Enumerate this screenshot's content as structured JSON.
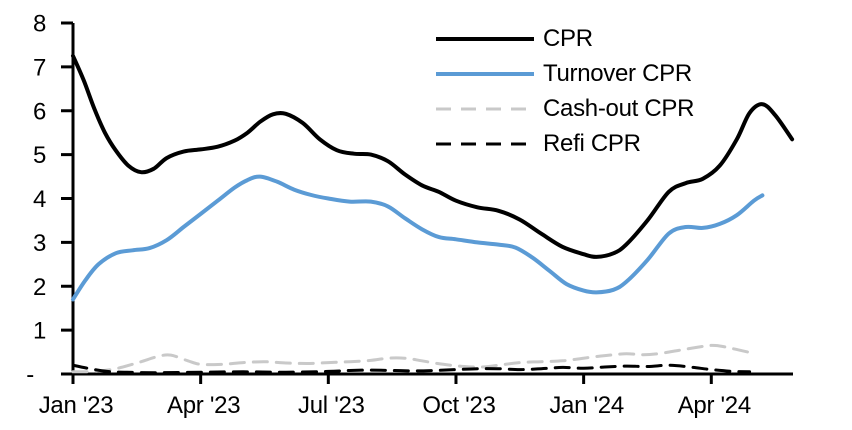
{
  "chart_data": {
    "type": "line",
    "title": "",
    "xlabel": "",
    "ylabel": "",
    "grid": false,
    "legend_position": "top-right-inside",
    "background_color": "#ffffff",
    "axis_color": "#000000",
    "x_axis": {
      "unit": "months since Jan 2023",
      "range": [
        0,
        16.92
      ],
      "tick_positions": [
        0,
        3,
        6,
        9,
        12,
        15
      ],
      "tick_labels": [
        "Jan '23",
        "Apr '23",
        "Jul '23",
        "Oct '23",
        "Jan '24",
        "Apr '24"
      ]
    },
    "y_axis": {
      "range": [
        0,
        8
      ],
      "tick_values": [
        0,
        1,
        2,
        3,
        4,
        5,
        6,
        7,
        8
      ],
      "tick_labels": [
        "-",
        "1",
        "2",
        "3",
        "4",
        "5",
        "6",
        "7",
        "8"
      ]
    },
    "series": [
      {
        "name": "CPR",
        "color": "#000000",
        "style": "solid",
        "width": 4,
        "x": [
          0,
          0.25,
          0.5,
          0.75,
          1,
          1.3,
          1.6,
          1.9,
          2.2,
          2.6,
          3,
          3.4,
          3.8,
          4.1,
          4.4,
          4.7,
          5,
          5.4,
          5.8,
          6.2,
          6.6,
          7,
          7.4,
          7.8,
          8.2,
          8.6,
          9,
          9.5,
          10,
          10.5,
          11,
          11.5,
          12,
          12.3,
          12.7,
          13,
          13.5,
          14,
          14.4,
          14.8,
          15.2,
          15.6,
          15.9,
          16.2,
          16.5,
          16.9
        ],
        "y": [
          7.25,
          6.7,
          6.05,
          5.5,
          5.1,
          4.75,
          4.6,
          4.68,
          4.92,
          5.07,
          5.12,
          5.18,
          5.32,
          5.5,
          5.75,
          5.92,
          5.93,
          5.72,
          5.35,
          5.1,
          5.02,
          5.0,
          4.85,
          4.55,
          4.3,
          4.15,
          3.95,
          3.8,
          3.72,
          3.52,
          3.2,
          2.9,
          2.73,
          2.67,
          2.75,
          2.95,
          3.5,
          4.15,
          4.35,
          4.45,
          4.75,
          5.35,
          5.95,
          6.15,
          5.9,
          5.35
        ]
      },
      {
        "name": "Turnover CPR",
        "color": "#5B9BD5",
        "style": "solid",
        "width": 4,
        "x": [
          0,
          0.3,
          0.6,
          1,
          1.4,
          1.8,
          2.2,
          2.6,
          3,
          3.4,
          3.8,
          4.1,
          4.4,
          4.8,
          5.2,
          5.6,
          6,
          6.5,
          7,
          7.4,
          7.8,
          8.2,
          8.6,
          9,
          9.5,
          10,
          10.4,
          10.8,
          11.2,
          11.6,
          12,
          12.3,
          12.7,
          13,
          13.5,
          14,
          14.4,
          14.8,
          15.2,
          15.6,
          16,
          16.2
        ],
        "y": [
          1.7,
          2.15,
          2.5,
          2.75,
          2.82,
          2.87,
          3.05,
          3.35,
          3.65,
          3.95,
          4.25,
          4.42,
          4.5,
          4.38,
          4.2,
          4.08,
          4.0,
          3.93,
          3.93,
          3.82,
          3.55,
          3.3,
          3.12,
          3.07,
          3.0,
          2.95,
          2.88,
          2.65,
          2.35,
          2.05,
          1.9,
          1.86,
          1.92,
          2.1,
          2.6,
          3.2,
          3.35,
          3.33,
          3.42,
          3.62,
          3.95,
          4.07
        ]
      },
      {
        "name": "Cash-out CPR",
        "color": "#C9C9C9",
        "style": "dashed",
        "width": 3,
        "x": [
          0,
          0.5,
          1,
          1.5,
          2,
          2.3,
          2.7,
          3,
          3.5,
          4,
          4.5,
          5,
          5.5,
          6,
          6.5,
          7,
          7.4,
          7.8,
          8.2,
          8.7,
          9.2,
          9.6,
          10,
          10.5,
          11,
          11.5,
          12,
          12.5,
          13,
          13.4,
          13.8,
          14.3,
          14.8,
          15.1,
          15.5,
          16
        ],
        "y": [
          0.05,
          0.06,
          0.12,
          0.25,
          0.4,
          0.43,
          0.3,
          0.22,
          0.22,
          0.26,
          0.28,
          0.25,
          0.24,
          0.26,
          0.28,
          0.31,
          0.36,
          0.36,
          0.3,
          0.22,
          0.17,
          0.16,
          0.2,
          0.26,
          0.28,
          0.3,
          0.36,
          0.42,
          0.46,
          0.44,
          0.47,
          0.55,
          0.63,
          0.65,
          0.58,
          0.47
        ]
      },
      {
        "name": "Refi CPR",
        "color": "#000000",
        "style": "dashed",
        "width": 3,
        "x": [
          0,
          0.4,
          0.8,
          1.2,
          2,
          3,
          4,
          5,
          6,
          6.5,
          7,
          7.5,
          8,
          8.5,
          9,
          9.5,
          10,
          10.5,
          11,
          11.5,
          12,
          12.5,
          13,
          13.5,
          14,
          14.5,
          15,
          15.5,
          15.9
        ],
        "y": [
          0.2,
          0.12,
          0.06,
          0.04,
          0.03,
          0.04,
          0.05,
          0.04,
          0.06,
          0.08,
          0.09,
          0.08,
          0.07,
          0.08,
          0.1,
          0.12,
          0.12,
          0.1,
          0.12,
          0.15,
          0.13,
          0.16,
          0.18,
          0.17,
          0.2,
          0.16,
          0.1,
          0.06,
          0.05
        ]
      }
    ]
  },
  "legend": {
    "items": [
      {
        "label": "CPR"
      },
      {
        "label": "Turnover CPR"
      },
      {
        "label": "Cash-out CPR"
      },
      {
        "label": "Refi CPR"
      }
    ]
  }
}
